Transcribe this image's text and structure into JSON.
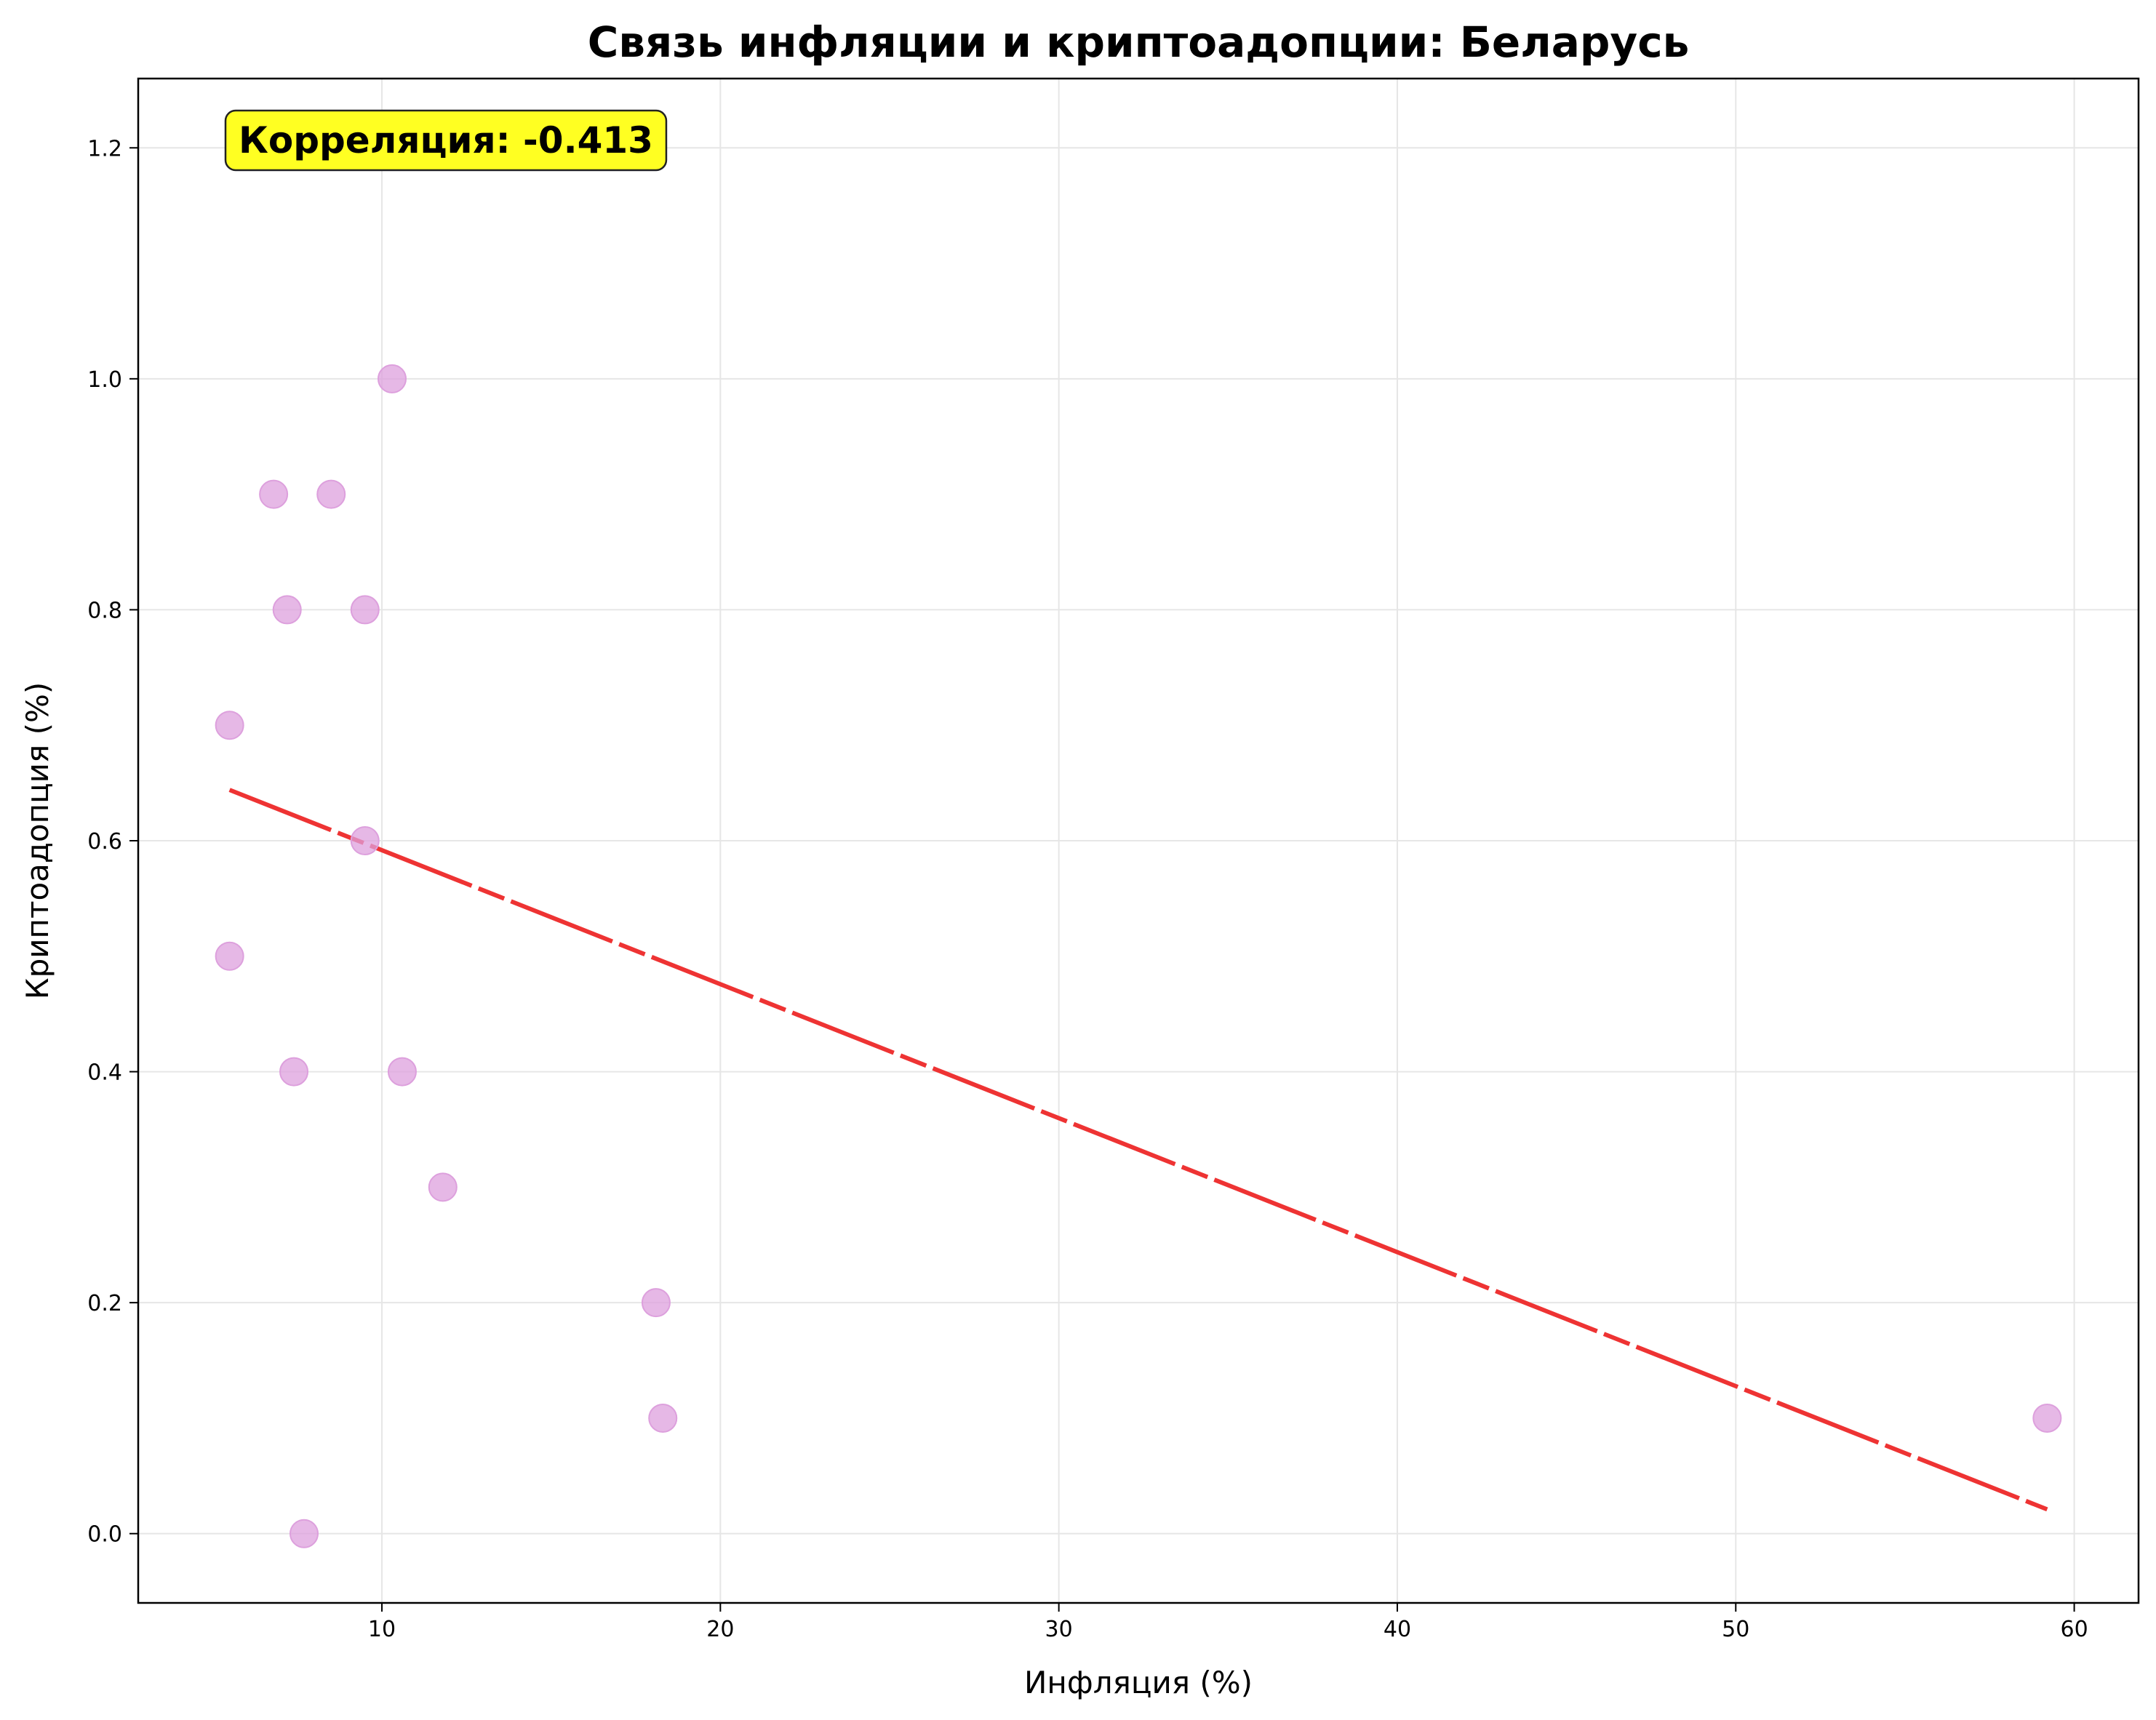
{
  "chart_data": {
    "type": "scatter",
    "title": "Связь инфляции и криптоадопции: Беларусь",
    "xlabel": "Инфляция (%)",
    "ylabel": "Криптоадопция (%)",
    "xlim": [
      2.8,
      61.9
    ],
    "ylim": [
      -0.06,
      1.26
    ],
    "xticks": [
      10,
      20,
      30,
      40,
      50,
      60
    ],
    "yticks": [
      0.0,
      0.2,
      0.4,
      0.6,
      0.8,
      1.0,
      1.2
    ],
    "xtick_labels": [
      "10",
      "20",
      "30",
      "40",
      "50",
      "60"
    ],
    "ytick_labels": [
      "0.0",
      "0.2",
      "0.4",
      "0.6",
      "0.8",
      "1.0",
      "1.2"
    ],
    "grid": true,
    "annotation": "Корреляция: -0.413",
    "points": [
      {
        "x": 5.5,
        "y": 0.7
      },
      {
        "x": 5.5,
        "y": 0.5
      },
      {
        "x": 6.8,
        "y": 0.9
      },
      {
        "x": 7.2,
        "y": 0.8
      },
      {
        "x": 7.4,
        "y": 0.4
      },
      {
        "x": 7.7,
        "y": 0.0
      },
      {
        "x": 8.5,
        "y": 0.9
      },
      {
        "x": 9.5,
        "y": 0.8
      },
      {
        "x": 9.5,
        "y": 0.6
      },
      {
        "x": 10.3,
        "y": 1.0
      },
      {
        "x": 10.6,
        "y": 0.4
      },
      {
        "x": 11.8,
        "y": 0.3
      },
      {
        "x": 18.1,
        "y": 0.2
      },
      {
        "x": 18.3,
        "y": 0.1
      },
      {
        "x": 59.2,
        "y": 0.1
      }
    ],
    "trendline": {
      "x": [
        5.5,
        59.2
      ],
      "y": [
        0.644,
        0.021
      ]
    },
    "colors": {
      "points": "#dda0dd",
      "trendline": "#ee3333",
      "annotation_bg": "#ffff22",
      "grid": "#e6e6e6"
    }
  }
}
